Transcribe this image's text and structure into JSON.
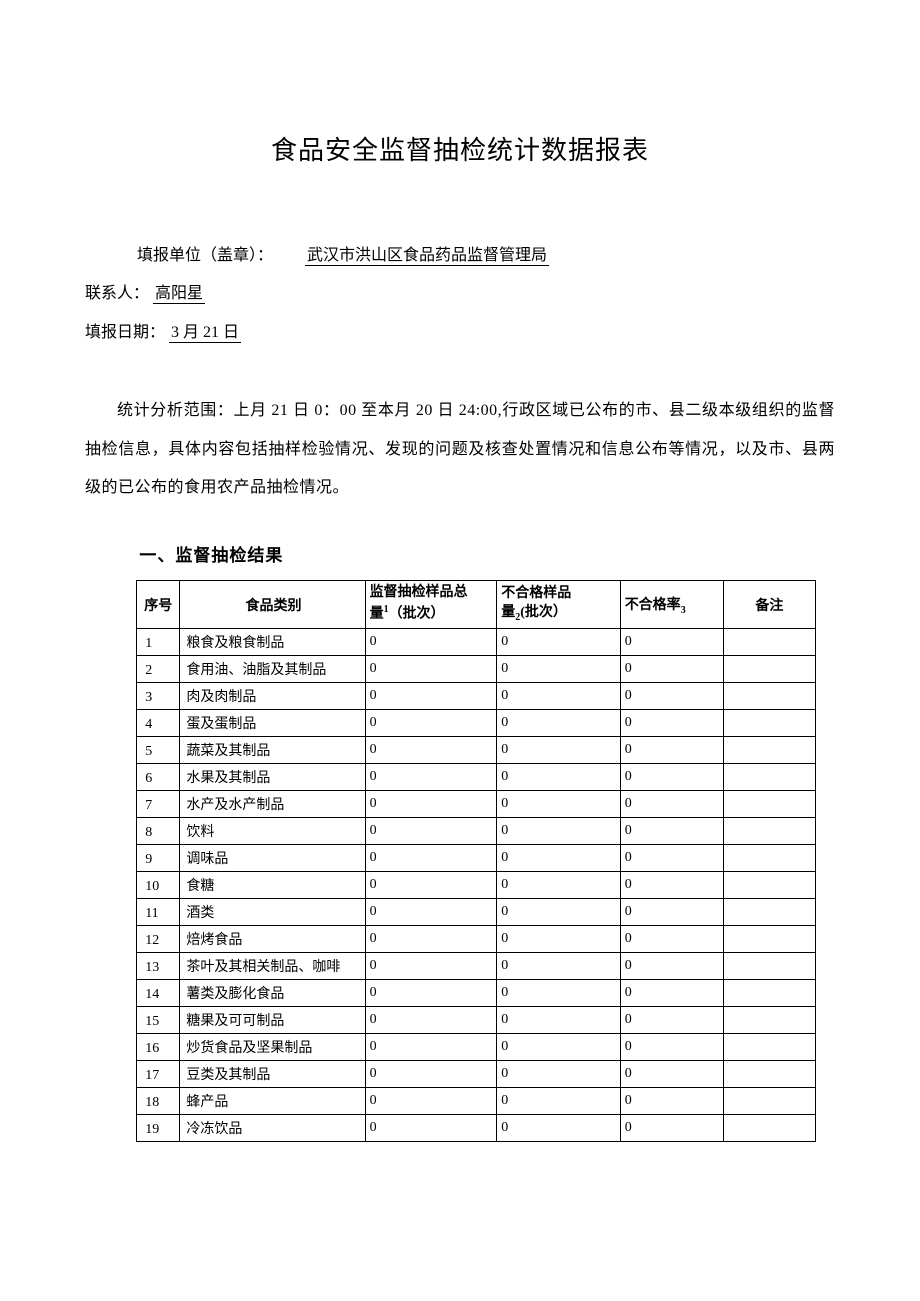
{
  "title": "食品安全监督抽检统计数据报表",
  "meta": {
    "unit_label": "填报单位（盖章）：",
    "unit_value": "武汉市洪山区食品药品监督管理局",
    "contact_label": "联系人：",
    "contact_value": "高阳星",
    "date_label": "填报日期：",
    "date_value": "3 月 21 日"
  },
  "scope_paragraph": "统计分析范围：上月 21 日 0：00 至本月 20 日 24:00,行政区域已公布的市、县二级本级组织的监督抽检信息，具体内容包括抽样检验情况、发现的问题及核查处置情况和信息公布等情况，以及市、县两级的已公布的食用农产品抽检情况。",
  "section_heading": "一、监督抽检结果",
  "table": {
    "columns": {
      "idx": "序号",
      "category": "食品类别",
      "total_line1": "监督抽检样品总",
      "total_line2_a": "量",
      "total_line2_b": "（批次）",
      "bad_line1": "不合格样品",
      "bad_line2_a": "量",
      "bad_line2_b": "批次）",
      "rate_a": "不合格率",
      "remark": "备注",
      "sub1": "1",
      "sub2": "2",
      "sub3": "3"
    },
    "rows": [
      {
        "idx": "1",
        "cat": "粮食及粮食制品",
        "total": "0",
        "bad": "0",
        "rate": "0",
        "remark": ""
      },
      {
        "idx": "2",
        "cat": "食用油、油脂及其制品",
        "total": "0",
        "bad": "0",
        "rate": "0",
        "remark": ""
      },
      {
        "idx": "3",
        "cat": "肉及肉制品",
        "total": "0",
        "bad": "0",
        "rate": "0",
        "remark": ""
      },
      {
        "idx": "4",
        "cat": "蛋及蛋制品",
        "total": "0",
        "bad": "0",
        "rate": "0",
        "remark": ""
      },
      {
        "idx": "5",
        "cat": "蔬菜及其制品",
        "total": "0",
        "bad": "0",
        "rate": "0",
        "remark": ""
      },
      {
        "idx": "6",
        "cat": "水果及其制品",
        "total": "0",
        "bad": "0",
        "rate": "0",
        "remark": ""
      },
      {
        "idx": "7",
        "cat": "水产及水产制品",
        "total": "0",
        "bad": "0",
        "rate": "0",
        "remark": ""
      },
      {
        "idx": "8",
        "cat": "饮料",
        "total": "0",
        "bad": "0",
        "rate": "0",
        "remark": ""
      },
      {
        "idx": "9",
        "cat": "调味品",
        "total": "0",
        "bad": "0",
        "rate": "0",
        "remark": ""
      },
      {
        "idx": "10",
        "cat": "食糖",
        "total": "0",
        "bad": "0",
        "rate": "0",
        "remark": ""
      },
      {
        "idx": "11",
        "cat": "酒类",
        "total": "0",
        "bad": "0",
        "rate": "0",
        "remark": ""
      },
      {
        "idx": "12",
        "cat": "焙烤食品",
        "total": "0",
        "bad": "0",
        "rate": "0",
        "remark": ""
      },
      {
        "idx": "13",
        "cat": "茶叶及其相关制品、咖啡",
        "total": "0",
        "bad": "0",
        "rate": "0",
        "remark": ""
      },
      {
        "idx": "14",
        "cat": "薯类及膨化食品",
        "total": "0",
        "bad": "0",
        "rate": "0",
        "remark": ""
      },
      {
        "idx": "15",
        "cat": "糖果及可可制品",
        "total": "0",
        "bad": "0",
        "rate": "0",
        "remark": ""
      },
      {
        "idx": "16",
        "cat": "炒货食品及坚果制品",
        "total": "0",
        "bad": "0",
        "rate": "0",
        "remark": ""
      },
      {
        "idx": "17",
        "cat": "豆类及其制品",
        "total": "0",
        "bad": "0",
        "rate": "0",
        "remark": ""
      },
      {
        "idx": "18",
        "cat": "蜂产品",
        "total": "0",
        "bad": "0",
        "rate": "0",
        "remark": ""
      },
      {
        "idx": "19",
        "cat": "冷冻饮品",
        "total": "0",
        "bad": "0",
        "rate": "0",
        "remark": ""
      }
    ]
  },
  "style": {
    "page_bg": "#ffffff",
    "text_color": "#000000",
    "border_color": "#000000",
    "title_fontsize": 26,
    "body_fontsize": 16,
    "table_fontsize": 14,
    "font_family": "SimSun"
  }
}
